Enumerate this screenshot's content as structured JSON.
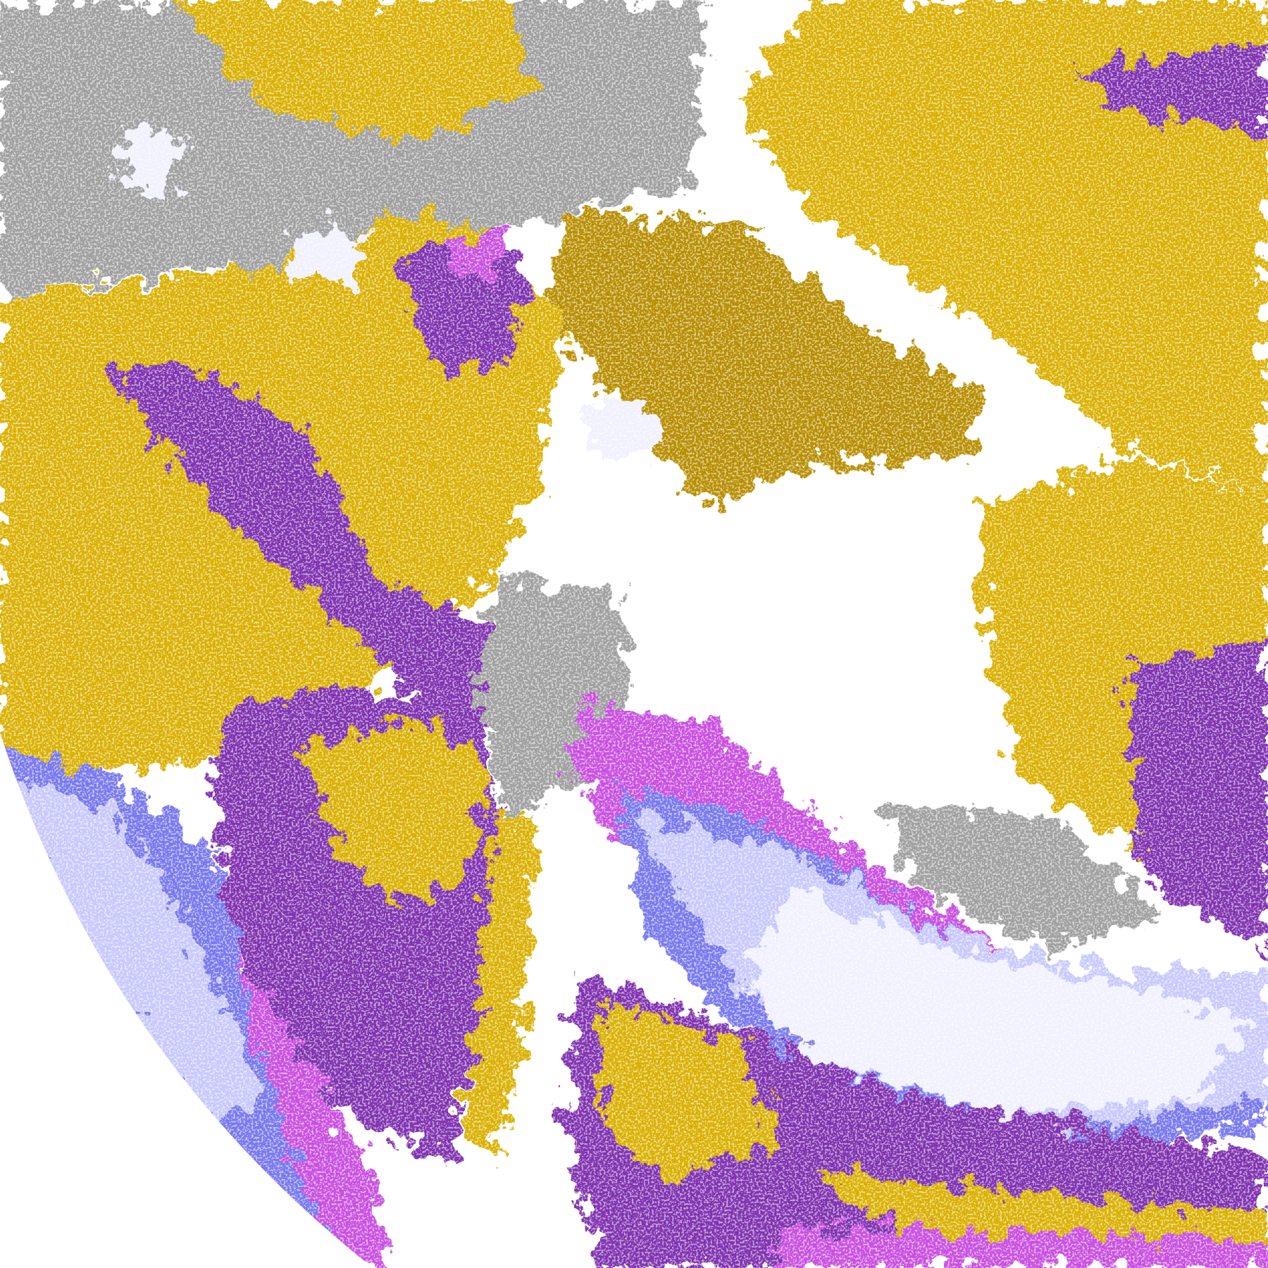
{
  "image": {
    "kind": "false-color satellite cloud classification",
    "background": "#ffffff",
    "palette": {
      "gold": "#dab000",
      "dark_gold": "#b88e00",
      "purple": "#8030b0",
      "magenta": "#c850e0",
      "blue": "#7878f0",
      "lavender": "#c8c8ff",
      "pale": "#f0f0ff",
      "gray": "#a0a0a0"
    }
  }
}
